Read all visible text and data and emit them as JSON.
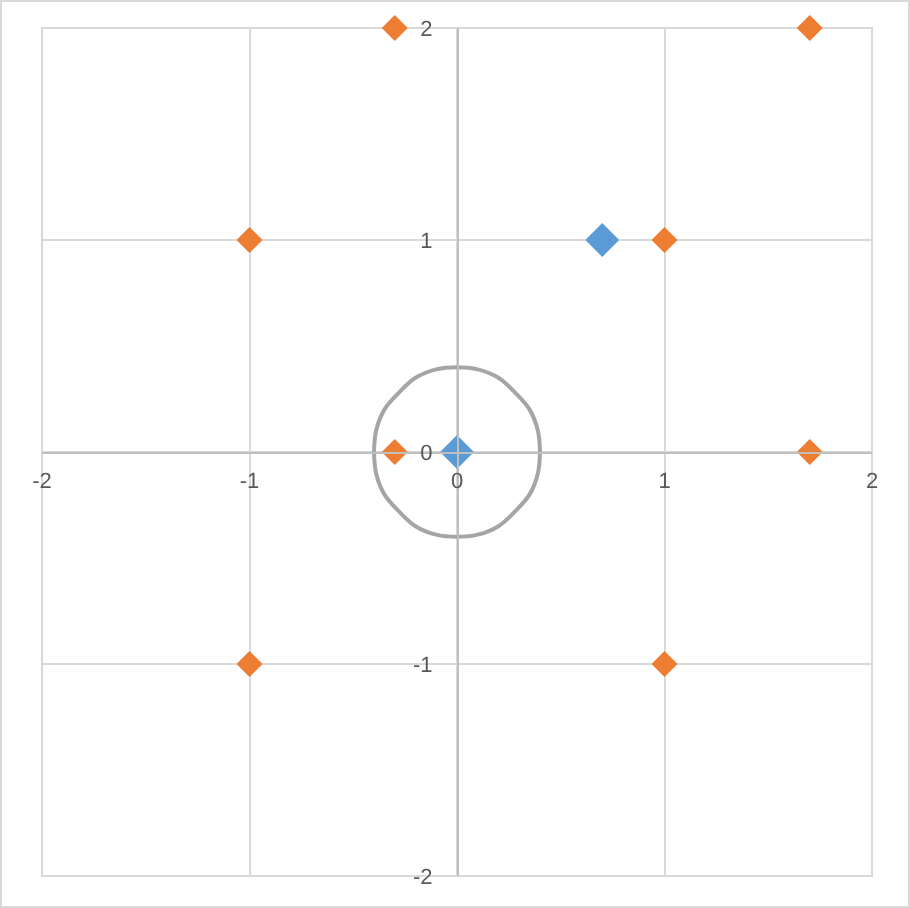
{
  "chart_data": {
    "type": "scatter",
    "series": [
      {
        "type": "line",
        "color": "#a5a5a5",
        "marker": "none",
        "x": [
          -0.4,
          -0.39,
          -0.35,
          -0.28,
          -0.2,
          -0.1,
          0,
          0.1,
          0.2,
          0.28,
          0.35,
          0.39,
          0.4
        ],
        "values": [
          0,
          0.1,
          0.2,
          0.28,
          0.35,
          0.39,
          0.4,
          0.39,
          0.35,
          0.28,
          0.2,
          0.1,
          0
        ]
      },
      {
        "type": "line",
        "color": "#a5a5a5",
        "marker": "none",
        "x": [
          -0.4,
          -0.39,
          -0.35,
          -0.28,
          -0.2,
          -0.1,
          0,
          0.1,
          0.2,
          0.28,
          0.35,
          0.39,
          0.4
        ],
        "values": [
          0,
          -0.1,
          -0.2,
          -0.28,
          -0.35,
          -0.39,
          -0.4,
          -0.39,
          -0.35,
          -0.28,
          -0.2,
          -0.1,
          0
        ]
      },
      {
        "color": "#ed7d31",
        "marker": "diamond",
        "x": [
          -0.3,
          1.7,
          -1,
          1,
          -0.3,
          1.7,
          -1,
          1
        ],
        "values": [
          2,
          2,
          1,
          1,
          0,
          0,
          -1,
          -1
        ]
      },
      {
        "color": "#5b9bd5",
        "marker": "diamond",
        "x": [
          0.7,
          0
        ],
        "values": [
          1,
          0
        ]
      }
    ],
    "xlim": [
      -2,
      2
    ],
    "ylim": [
      -2,
      2
    ],
    "xticks": [
      -2,
      -1,
      0,
      1,
      2
    ],
    "yticks": [
      -2,
      -1,
      0,
      1,
      2
    ],
    "grid": true
  }
}
